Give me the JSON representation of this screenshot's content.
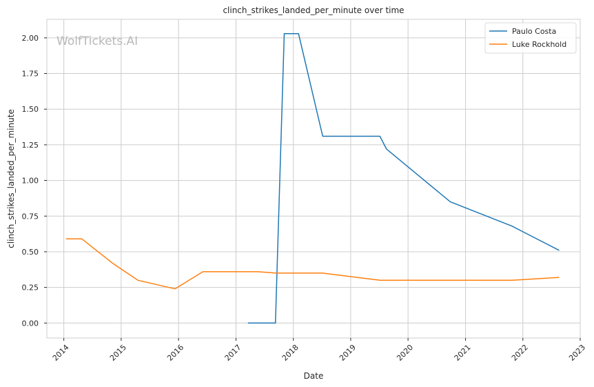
{
  "chart_data": {
    "type": "line",
    "title": "clinch_strikes_landed_per_minute over time",
    "xlabel": "Date",
    "ylabel": "clinch_strikes_landed_per_minute",
    "watermark": "WolfTickets.AI",
    "xlim": [
      "2013-09-15",
      "2023-01-01"
    ],
    "ylim": [
      -0.105,
      2.13
    ],
    "x_ticks": [
      "2014",
      "2015",
      "2016",
      "2017",
      "2018",
      "2019",
      "2020",
      "2021",
      "2022",
      "2023"
    ],
    "y_ticks": [
      "0.00",
      "0.25",
      "0.50",
      "0.75",
      "1.00",
      "1.25",
      "1.50",
      "1.75",
      "2.00"
    ],
    "y_tick_values": [
      0,
      0.25,
      0.5,
      0.75,
      1.0,
      1.25,
      1.5,
      1.75,
      2.0
    ],
    "grid": true,
    "legend_position": "top-right",
    "series": [
      {
        "name": "Paulo Costa",
        "color": "#1f77b4",
        "points": [
          [
            "2017-03-18",
            0.0
          ],
          [
            "2017-09-09",
            0.0
          ],
          [
            "2017-11-04",
            2.03
          ],
          [
            "2018-02-03",
            2.03
          ],
          [
            "2018-07-07",
            1.31
          ],
          [
            "2019-07-06",
            1.31
          ],
          [
            "2019-08-17",
            1.22
          ],
          [
            "2020-09-26",
            0.85
          ],
          [
            "2021-10-23",
            0.68
          ],
          [
            "2022-08-20",
            0.51
          ]
        ]
      },
      {
        "name": "Luke Rockhold",
        "color": "#ff7f0e",
        "points": [
          [
            "2014-01-15",
            0.59
          ],
          [
            "2014-04-26",
            0.59
          ],
          [
            "2014-11-07",
            0.42
          ],
          [
            "2015-04-18",
            0.3
          ],
          [
            "2015-12-10",
            0.24
          ],
          [
            "2016-06-04",
            0.36
          ],
          [
            "2017-05-20",
            0.36
          ],
          [
            "2017-09-16",
            0.35
          ],
          [
            "2018-02-10",
            0.35
          ],
          [
            "2018-07-07",
            0.35
          ],
          [
            "2019-07-06",
            0.3
          ],
          [
            "2021-10-23",
            0.3
          ],
          [
            "2022-08-20",
            0.32
          ]
        ]
      }
    ]
  }
}
